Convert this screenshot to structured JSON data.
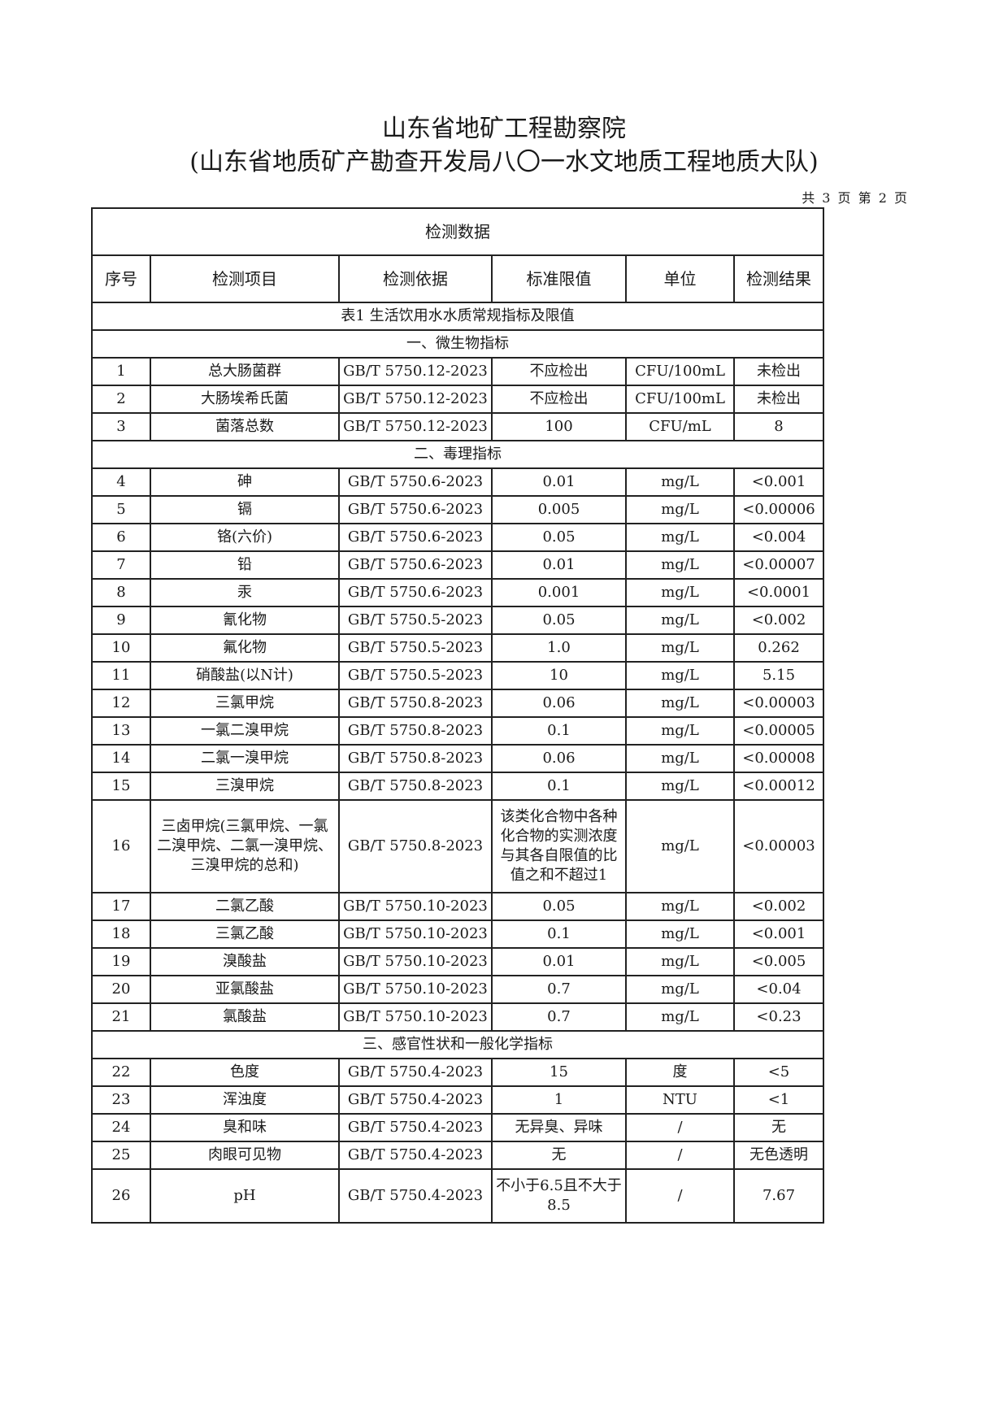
{
  "header": {
    "title": "山东省地矿工程勘察院",
    "subtitle": "(山东省地质矿产勘查开发局八〇一水文地质工程地质大队)",
    "page_info": "共 3 页 第 2 页"
  },
  "table": {
    "caption": "检测数据",
    "columns": [
      "序号",
      "检测项目",
      "检测依据",
      "标准限值",
      "单位",
      "检测结果"
    ],
    "rows": [
      {
        "type": "section",
        "text": "表1 生活饮用水水质常规指标及限值"
      },
      {
        "type": "section",
        "text": "一、微生物指标"
      },
      {
        "cells": [
          "1",
          "总大肠菌群",
          "GB/T 5750.12-2023",
          "不应检出",
          "CFU/100mL",
          "未检出"
        ]
      },
      {
        "cells": [
          "2",
          "大肠埃希氏菌",
          "GB/T 5750.12-2023",
          "不应检出",
          "CFU/100mL",
          "未检出"
        ]
      },
      {
        "cells": [
          "3",
          "菌落总数",
          "GB/T 5750.12-2023",
          "100",
          "CFU/mL",
          "8"
        ]
      },
      {
        "type": "section",
        "text": "二、毒理指标"
      },
      {
        "cells": [
          "4",
          "砷",
          "GB/T 5750.6-2023",
          "0.01",
          "mg/L",
          "<0.001"
        ]
      },
      {
        "cells": [
          "5",
          "镉",
          "GB/T 5750.6-2023",
          "0.005",
          "mg/L",
          "<0.00006"
        ]
      },
      {
        "cells": [
          "6",
          "铬(六价)",
          "GB/T 5750.6-2023",
          "0.05",
          "mg/L",
          "<0.004"
        ]
      },
      {
        "cells": [
          "7",
          "铅",
          "GB/T 5750.6-2023",
          "0.01",
          "mg/L",
          "<0.00007"
        ]
      },
      {
        "cells": [
          "8",
          "汞",
          "GB/T 5750.6-2023",
          "0.001",
          "mg/L",
          "<0.0001"
        ]
      },
      {
        "cells": [
          "9",
          "氰化物",
          "GB/T 5750.5-2023",
          "0.05",
          "mg/L",
          "<0.002"
        ]
      },
      {
        "cells": [
          "10",
          "氟化物",
          "GB/T 5750.5-2023",
          "1.0",
          "mg/L",
          "0.262"
        ]
      },
      {
        "cells": [
          "11",
          "硝酸盐(以N计)",
          "GB/T 5750.5-2023",
          "10",
          "mg/L",
          "5.15"
        ]
      },
      {
        "cells": [
          "12",
          "三氯甲烷",
          "GB/T 5750.8-2023",
          "0.06",
          "mg/L",
          "<0.00003"
        ]
      },
      {
        "cells": [
          "13",
          "一氯二溴甲烷",
          "GB/T 5750.8-2023",
          "0.1",
          "mg/L",
          "<0.00005"
        ]
      },
      {
        "cells": [
          "14",
          "二氯一溴甲烷",
          "GB/T 5750.8-2023",
          "0.06",
          "mg/L",
          "<0.00008"
        ]
      },
      {
        "cells": [
          "15",
          "三溴甲烷",
          "GB/T 5750.8-2023",
          "0.1",
          "mg/L",
          "<0.00012"
        ]
      },
      {
        "type": "tall",
        "cells": [
          "16",
          "三卤甲烷(三氯甲烷、一氯二溴甲烷、二氯一溴甲烷、三溴甲烷的总和)",
          "GB/T 5750.8-2023",
          "该类化合物中各种化合物的实测浓度与其各自限值的比值之和不超过1",
          "mg/L",
          "<0.00003"
        ]
      },
      {
        "cells": [
          "17",
          "二氯乙酸",
          "GB/T 5750.10-2023",
          "0.05",
          "mg/L",
          "<0.002"
        ]
      },
      {
        "cells": [
          "18",
          "三氯乙酸",
          "GB/T 5750.10-2023",
          "0.1",
          "mg/L",
          "<0.001"
        ]
      },
      {
        "cells": [
          "19",
          "溴酸盐",
          "GB/T 5750.10-2023",
          "0.01",
          "mg/L",
          "<0.005"
        ]
      },
      {
        "cells": [
          "20",
          "亚氯酸盐",
          "GB/T 5750.10-2023",
          "0.7",
          "mg/L",
          "<0.04"
        ]
      },
      {
        "cells": [
          "21",
          "氯酸盐",
          "GB/T 5750.10-2023",
          "0.7",
          "mg/L",
          "<0.23"
        ]
      },
      {
        "type": "section",
        "text": "三、感官性状和一般化学指标"
      },
      {
        "cells": [
          "22",
          "色度",
          "GB/T 5750.4-2023",
          "15",
          "度",
          "<5"
        ]
      },
      {
        "cells": [
          "23",
          "浑浊度",
          "GB/T 5750.4-2023",
          "1",
          "NTU",
          "<1"
        ]
      },
      {
        "cells": [
          "24",
          "臭和味",
          "GB/T 5750.4-2023",
          "无异臭、异味",
          "/",
          "无"
        ]
      },
      {
        "cells": [
          "25",
          "肉眼可见物",
          "GB/T 5750.4-2023",
          "无",
          "/",
          "无色透明"
        ]
      },
      {
        "type": "mid",
        "cells": [
          "26",
          "pH",
          "GB/T 5750.4-2023",
          "不小于6.5且不大于8.5",
          "/",
          "7.67"
        ]
      }
    ]
  }
}
